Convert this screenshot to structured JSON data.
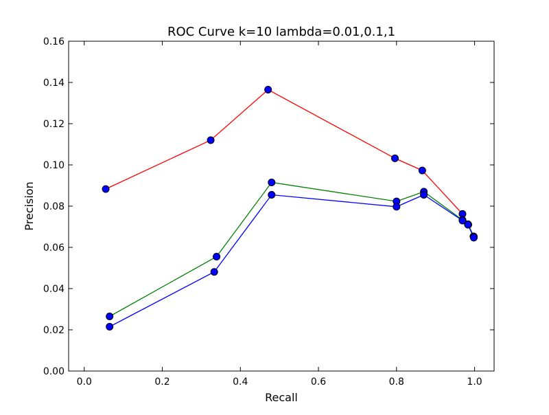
{
  "chart_data": {
    "type": "line",
    "title": "ROC Curve k=10 lambda=0.01,0.1,1",
    "xlabel": "Recall",
    "ylabel": "Precision",
    "xlim": [
      -0.04,
      1.05
    ],
    "ylim": [
      0.0,
      0.16
    ],
    "x_ticks": [
      0.0,
      0.2,
      0.4,
      0.6,
      0.8,
      1.0
    ],
    "y_ticks": [
      0.0,
      0.02,
      0.04,
      0.06,
      0.08,
      0.1,
      0.12,
      0.14,
      0.16
    ],
    "x_tick_labels": [
      "0.0",
      "0.2",
      "0.4",
      "0.6",
      "0.8",
      "1.0"
    ],
    "y_tick_labels": [
      "0.00",
      "0.02",
      "0.04",
      "0.06",
      "0.08",
      "0.10",
      "0.12",
      "0.14",
      "0.16"
    ],
    "grid": false,
    "legend": "none",
    "marker_color": "#0000ff",
    "series": [
      {
        "color": "#ff0000",
        "x": [
          0.055,
          0.324,
          0.471,
          0.796,
          0.866,
          0.969,
          0.983,
          0.997
        ],
        "y": [
          0.0883,
          0.112,
          0.1365,
          0.1032,
          0.0973,
          0.0762,
          0.0712,
          0.0653
        ]
      },
      {
        "color": "#008000",
        "x": [
          0.065,
          0.339,
          0.48,
          0.8,
          0.87,
          0.969,
          0.984,
          0.998
        ],
        "y": [
          0.0265,
          0.0555,
          0.0915,
          0.0823,
          0.087,
          0.0733,
          0.071,
          0.0653
        ]
      },
      {
        "color": "#0000ff",
        "x": [
          0.065,
          0.333,
          0.48,
          0.8,
          0.87,
          0.969,
          0.983,
          0.998
        ],
        "y": [
          0.0215,
          0.0481,
          0.0855,
          0.0797,
          0.0855,
          0.073,
          0.071,
          0.0647
        ]
      }
    ]
  }
}
